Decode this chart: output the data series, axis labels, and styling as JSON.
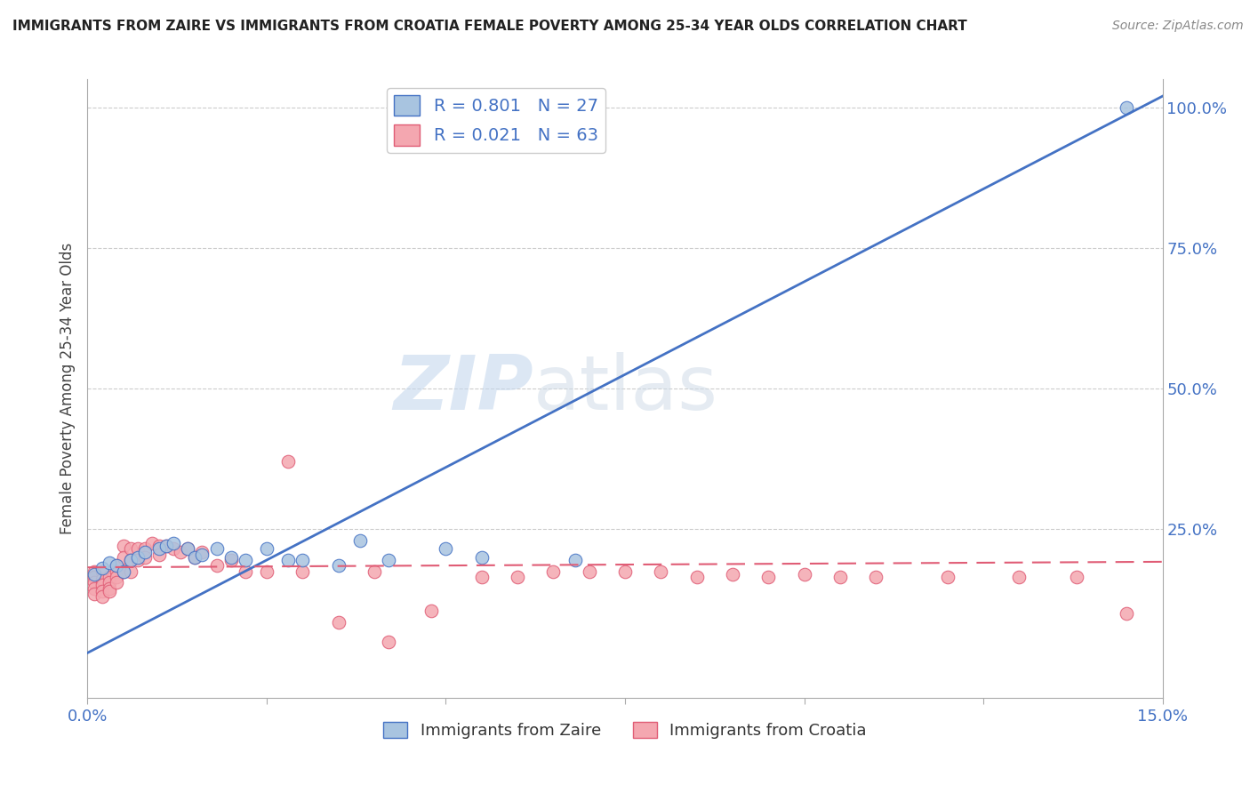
{
  "title": "IMMIGRANTS FROM ZAIRE VS IMMIGRANTS FROM CROATIA FEMALE POVERTY AMONG 25-34 YEAR OLDS CORRELATION CHART",
  "source": "Source: ZipAtlas.com",
  "ylabel": "Female Poverty Among 25-34 Year Olds",
  "legend_label_zaire": "Immigrants from Zaire",
  "legend_label_croatia": "Immigrants from Croatia",
  "R_zaire": "0.801",
  "N_zaire": "27",
  "R_croatia": "0.021",
  "N_croatia": "63",
  "color_zaire": "#a8c4e0",
  "color_zaire_line": "#4472c4",
  "color_croatia": "#f4a7b0",
  "color_croatia_line": "#e05c75",
  "watermark_zip": "ZIP",
  "watermark_atlas": "atlas",
  "xlim": [
    0.0,
    0.15
  ],
  "ylim": [
    -0.05,
    1.05
  ],
  "zaire_x": [
    0.001,
    0.002,
    0.003,
    0.004,
    0.005,
    0.006,
    0.007,
    0.008,
    0.01,
    0.011,
    0.012,
    0.014,
    0.015,
    0.016,
    0.018,
    0.02,
    0.022,
    0.025,
    0.028,
    0.03,
    0.035,
    0.038,
    0.042,
    0.05,
    0.055,
    0.068,
    0.145
  ],
  "zaire_y": [
    0.17,
    0.18,
    0.19,
    0.185,
    0.175,
    0.195,
    0.2,
    0.21,
    0.215,
    0.22,
    0.225,
    0.215,
    0.2,
    0.205,
    0.215,
    0.2,
    0.195,
    0.215,
    0.195,
    0.195,
    0.185,
    0.23,
    0.195,
    0.215,
    0.2,
    0.195,
    1.0
  ],
  "croatia_x": [
    0.001,
    0.001,
    0.001,
    0.001,
    0.001,
    0.002,
    0.002,
    0.002,
    0.002,
    0.002,
    0.003,
    0.003,
    0.003,
    0.003,
    0.004,
    0.004,
    0.004,
    0.004,
    0.005,
    0.005,
    0.005,
    0.006,
    0.006,
    0.006,
    0.007,
    0.007,
    0.008,
    0.008,
    0.009,
    0.01,
    0.01,
    0.011,
    0.012,
    0.013,
    0.014,
    0.015,
    0.016,
    0.018,
    0.02,
    0.022,
    0.025,
    0.028,
    0.03,
    0.035,
    0.04,
    0.042,
    0.048,
    0.055,
    0.06,
    0.065,
    0.07,
    0.075,
    0.08,
    0.085,
    0.09,
    0.095,
    0.1,
    0.105,
    0.11,
    0.12,
    0.13,
    0.138,
    0.145
  ],
  "croatia_y": [
    0.175,
    0.165,
    0.155,
    0.145,
    0.135,
    0.175,
    0.16,
    0.15,
    0.14,
    0.13,
    0.165,
    0.155,
    0.145,
    0.14,
    0.185,
    0.175,
    0.165,
    0.155,
    0.22,
    0.2,
    0.175,
    0.215,
    0.195,
    0.175,
    0.215,
    0.195,
    0.215,
    0.2,
    0.225,
    0.22,
    0.205,
    0.22,
    0.215,
    0.21,
    0.215,
    0.2,
    0.21,
    0.185,
    0.195,
    0.175,
    0.175,
    0.37,
    0.175,
    0.085,
    0.175,
    0.05,
    0.105,
    0.165,
    0.165,
    0.175,
    0.175,
    0.175,
    0.175,
    0.165,
    0.17,
    0.165,
    0.17,
    0.165,
    0.165,
    0.165,
    0.165,
    0.165,
    0.1
  ],
  "zaire_line_x": [
    0.0,
    0.15
  ],
  "zaire_line_y": [
    0.03,
    1.02
  ],
  "croatia_line_x": [
    0.0,
    0.15
  ],
  "croatia_line_y": [
    0.182,
    0.192
  ],
  "background_color": "#ffffff",
  "grid_color": "#cccccc",
  "yticks": [
    0.25,
    0.5,
    0.75,
    1.0
  ],
  "ytick_labels": [
    "25.0%",
    "50.0%",
    "75.0%",
    "100.0%"
  ],
  "xticks": [
    0.0,
    0.025,
    0.05,
    0.075,
    0.1,
    0.125,
    0.15
  ],
  "xtick_labels": [
    "0.0%",
    "",
    "",
    "",
    "",
    "",
    "15.0%"
  ]
}
